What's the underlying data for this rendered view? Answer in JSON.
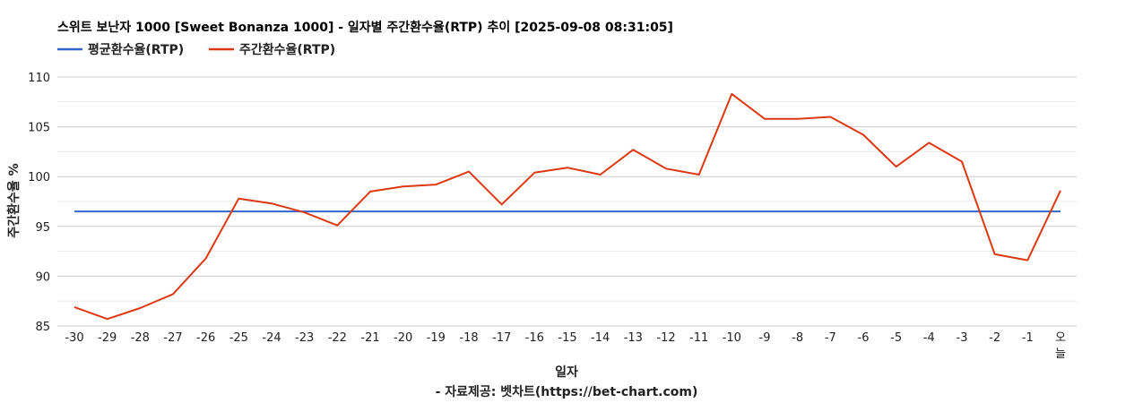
{
  "chart_data": {
    "type": "line",
    "title": "스위트 보난자 1000 [Sweet Bonanza 1000] - 일자별 주간환수율(RTP) 추이 [2025-09-08 08:31:05]",
    "xlabel": "일자",
    "ylabel": "주간환수율 %",
    "credit": "- 자료제공: 벳차트(https://bet-chart.com)",
    "legend_position": "top-left",
    "grid": true,
    "ylim": [
      85,
      110
    ],
    "yticks": [
      85,
      90,
      95,
      100,
      105,
      110
    ],
    "categories": [
      "-30",
      "-29",
      "-28",
      "-27",
      "-26",
      "-25",
      "-24",
      "-23",
      "-22",
      "-21",
      "-20",
      "-19",
      "-18",
      "-17",
      "-16",
      "-15",
      "-14",
      "-13",
      "-12",
      "-11",
      "-10",
      "-9",
      "-8",
      "-7",
      "-6",
      "-5",
      "-4",
      "-3",
      "-2",
      "-1",
      "오늘"
    ],
    "series": [
      {
        "name": "평균환수율(RTP)",
        "color": "#3366cc",
        "values": [
          96.5,
          96.5,
          96.5,
          96.5,
          96.5,
          96.5,
          96.5,
          96.5,
          96.5,
          96.5,
          96.5,
          96.5,
          96.5,
          96.5,
          96.5,
          96.5,
          96.5,
          96.5,
          96.5,
          96.5,
          96.5,
          96.5,
          96.5,
          96.5,
          96.5,
          96.5,
          96.5,
          96.5,
          96.5,
          96.5,
          96.5
        ]
      },
      {
        "name": "주간환수율(RTP)",
        "color": "#dc3912",
        "values": [
          86.9,
          85.7,
          86.8,
          88.2,
          91.8,
          97.8,
          97.3,
          96.4,
          95.1,
          98.5,
          99.0,
          99.2,
          100.5,
          97.2,
          100.4,
          100.9,
          100.2,
          102.7,
          100.8,
          100.2,
          108.3,
          105.8,
          105.8,
          106.0,
          104.2,
          101.0,
          103.4,
          101.5,
          92.2,
          91.6,
          98.6
        ]
      }
    ]
  }
}
